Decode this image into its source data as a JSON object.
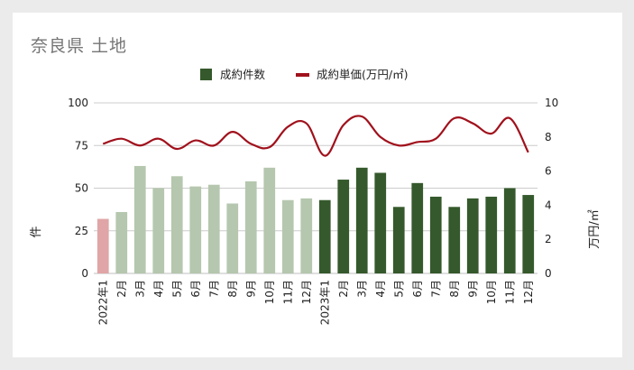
{
  "title": "奈良県 土地",
  "chart_data": {
    "type": "bar+line",
    "categories": [
      "2022年1",
      "2月",
      "3月",
      "4月",
      "5月",
      "6月",
      "7月",
      "8月",
      "9月",
      "10月",
      "11月",
      "12月",
      "2023年1",
      "2月",
      "3月",
      "4月",
      "5月",
      "6月",
      "7月",
      "8月",
      "9月",
      "10月",
      "11月",
      "12月"
    ],
    "series": [
      {
        "name": "成約件数",
        "type": "bar",
        "axis": "left",
        "values": [
          32,
          36,
          63,
          50,
          57,
          51,
          52,
          41,
          54,
          62,
          43,
          44,
          43,
          55,
          62,
          59,
          39,
          53,
          45,
          39,
          44,
          45,
          50,
          46
        ]
      },
      {
        "name": "成約単価(万円/㎡)",
        "type": "line",
        "axis": "right",
        "values": [
          7.6,
          7.9,
          7.5,
          7.9,
          7.3,
          7.8,
          7.5,
          8.3,
          7.6,
          7.4,
          8.6,
          8.8,
          6.9,
          8.7,
          9.2,
          8.0,
          7.5,
          7.7,
          7.9,
          9.1,
          8.8,
          8.2,
          9.1,
          7.1
        ]
      }
    ],
    "ylabel": "件",
    "y2label": "万円/㎡",
    "ylim": [
      0,
      100
    ],
    "y2lim": [
      0,
      10
    ],
    "yticks": [
      "100",
      "75",
      "50",
      "25",
      "0"
    ],
    "y2ticks": [
      "10",
      "8",
      "6",
      "4",
      "2",
      "0"
    ],
    "legend_position": "top-center",
    "grid": true,
    "colors": {
      "bar_first": "#e0a5a6",
      "bar_2022": "#b5c7ae",
      "bar_2023": "#35592c",
      "line": "#a0111c",
      "grid": "#cccccc"
    }
  }
}
